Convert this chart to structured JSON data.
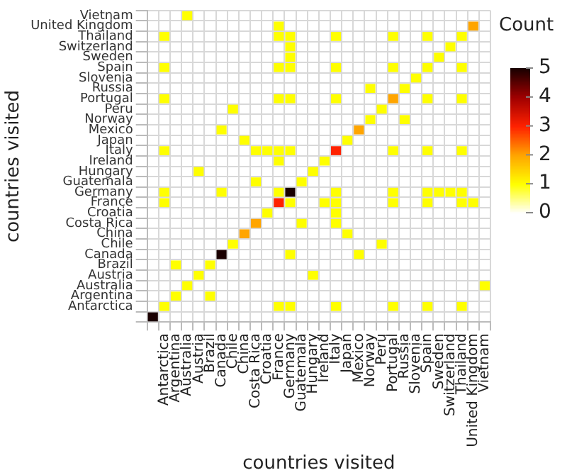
{
  "chart_data": {
    "type": "heatmap",
    "xlabel": "countries visited",
    "ylabel": "countries visited",
    "clabel": "Count",
    "categories": [
      null,
      "Antarctica",
      "Argentina",
      "Australia",
      "Austria",
      "Brazil",
      "Canada",
      "Chile",
      "China",
      "Costa Rica",
      "Croatia",
      "France",
      "Germany",
      "Guatemala",
      "Hungary",
      "Ireland",
      "Italy",
      "Japan",
      "Mexico",
      "Norway",
      "Peru",
      "Portugal",
      "Russia",
      "Slovenia",
      "Spain",
      "Sweden",
      "Switzerland",
      "Thailand",
      "United Kingdom",
      "Vietnam"
    ],
    "y_categories": [
      "Vietnam",
      "United Kingdom",
      "Thailand",
      "Switzerland",
      "Sweden",
      "Spain",
      "Slovenia",
      "Russia",
      "Portugal",
      "Peru",
      "Norway",
      "Mexico",
      "Japan",
      "Italy",
      "Ireland",
      "Hungary",
      "Guatemala",
      "Germany",
      "France",
      "Croatia",
      "Costa Rica",
      "China",
      "Chile",
      "Canada",
      "Brazil",
      "Austria",
      "Australia",
      "Argentina",
      "Antarctica",
      null
    ],
    "cells": [
      [
        null,
        null,
        null,
        1,
        null,
        null,
        null,
        null,
        null,
        null,
        null,
        null,
        null,
        null,
        null,
        null,
        null,
        null,
        null,
        null,
        null,
        null,
        null,
        null,
        null,
        null,
        null,
        null,
        null,
        null
      ],
      [
        null,
        null,
        null,
        null,
        null,
        null,
        null,
        null,
        null,
        null,
        null,
        1,
        null,
        null,
        null,
        null,
        null,
        null,
        null,
        null,
        null,
        null,
        null,
        null,
        null,
        null,
        null,
        null,
        2,
        null
      ],
      [
        null,
        1,
        null,
        null,
        null,
        null,
        null,
        null,
        null,
        null,
        null,
        1,
        1,
        null,
        null,
        null,
        1,
        null,
        null,
        null,
        null,
        1,
        null,
        null,
        1,
        null,
        null,
        1,
        null,
        null
      ],
      [
        null,
        null,
        null,
        null,
        null,
        null,
        null,
        null,
        null,
        null,
        null,
        null,
        1,
        null,
        null,
        null,
        null,
        null,
        null,
        null,
        null,
        null,
        null,
        null,
        null,
        null,
        1,
        null,
        null,
        null
      ],
      [
        null,
        null,
        null,
        null,
        null,
        null,
        null,
        null,
        null,
        null,
        null,
        null,
        1,
        null,
        null,
        null,
        null,
        null,
        null,
        null,
        null,
        null,
        null,
        null,
        null,
        1,
        null,
        null,
        null,
        null
      ],
      [
        null,
        1,
        null,
        null,
        null,
        null,
        null,
        null,
        null,
        null,
        null,
        1,
        1,
        null,
        null,
        null,
        1,
        null,
        null,
        null,
        null,
        1,
        null,
        null,
        1,
        null,
        null,
        1,
        null,
        null
      ],
      [
        null,
        null,
        null,
        null,
        null,
        null,
        null,
        null,
        null,
        null,
        null,
        null,
        null,
        null,
        null,
        null,
        null,
        null,
        null,
        null,
        null,
        null,
        null,
        1,
        null,
        null,
        null,
        null,
        null,
        null
      ],
      [
        null,
        null,
        null,
        null,
        null,
        null,
        null,
        null,
        null,
        null,
        null,
        null,
        null,
        null,
        null,
        null,
        null,
        null,
        null,
        1,
        null,
        null,
        1,
        null,
        null,
        null,
        null,
        null,
        null,
        null
      ],
      [
        null,
        1,
        null,
        null,
        null,
        null,
        null,
        null,
        null,
        null,
        null,
        1,
        1,
        null,
        null,
        null,
        1,
        null,
        null,
        null,
        null,
        2,
        null,
        null,
        1,
        null,
        null,
        1,
        null,
        null
      ],
      [
        null,
        null,
        null,
        null,
        null,
        null,
        null,
        1,
        null,
        null,
        null,
        null,
        null,
        null,
        null,
        null,
        null,
        null,
        null,
        null,
        1,
        null,
        null,
        null,
        null,
        null,
        null,
        null,
        null,
        null
      ],
      [
        null,
        null,
        null,
        null,
        null,
        null,
        null,
        null,
        null,
        null,
        null,
        null,
        null,
        null,
        null,
        null,
        null,
        null,
        null,
        1,
        null,
        null,
        1,
        null,
        null,
        null,
        null,
        null,
        null,
        null
      ],
      [
        null,
        null,
        null,
        null,
        null,
        null,
        1,
        null,
        null,
        null,
        null,
        null,
        null,
        null,
        null,
        null,
        null,
        null,
        2,
        null,
        null,
        null,
        null,
        null,
        null,
        null,
        null,
        null,
        null,
        null
      ],
      [
        null,
        null,
        null,
        null,
        null,
        null,
        null,
        null,
        1,
        null,
        null,
        null,
        null,
        null,
        null,
        null,
        null,
        1,
        null,
        null,
        null,
        null,
        null,
        null,
        null,
        null,
        null,
        null,
        null,
        null
      ],
      [
        null,
        1,
        null,
        null,
        null,
        null,
        null,
        null,
        null,
        1,
        1,
        1,
        1,
        null,
        null,
        null,
        3,
        null,
        null,
        null,
        null,
        1,
        null,
        null,
        1,
        null,
        null,
        1,
        null,
        null
      ],
      [
        null,
        null,
        null,
        null,
        null,
        null,
        null,
        null,
        null,
        null,
        null,
        1,
        null,
        null,
        null,
        1,
        null,
        null,
        null,
        null,
        null,
        null,
        null,
        null,
        null,
        null,
        null,
        null,
        null,
        null
      ],
      [
        null,
        null,
        null,
        null,
        1,
        null,
        null,
        null,
        null,
        null,
        null,
        null,
        null,
        null,
        1,
        null,
        null,
        null,
        null,
        null,
        null,
        null,
        null,
        null,
        null,
        null,
        null,
        null,
        null,
        null
      ],
      [
        null,
        null,
        null,
        null,
        null,
        null,
        null,
        null,
        null,
        1,
        null,
        null,
        null,
        1,
        null,
        null,
        null,
        null,
        null,
        null,
        null,
        null,
        null,
        null,
        null,
        null,
        null,
        null,
        null,
        null
      ],
      [
        null,
        1,
        null,
        null,
        null,
        null,
        1,
        null,
        null,
        null,
        null,
        1,
        5,
        null,
        null,
        null,
        1,
        null,
        null,
        null,
        null,
        1,
        null,
        null,
        1,
        1,
        1,
        1,
        null,
        null
      ],
      [
        null,
        1,
        null,
        null,
        null,
        null,
        null,
        null,
        null,
        null,
        null,
        3,
        1,
        null,
        null,
        1,
        1,
        null,
        null,
        null,
        null,
        1,
        null,
        null,
        1,
        null,
        null,
        1,
        1,
        null
      ],
      [
        null,
        null,
        null,
        null,
        null,
        null,
        null,
        null,
        null,
        null,
        1,
        null,
        null,
        null,
        null,
        null,
        1,
        null,
        null,
        null,
        null,
        null,
        null,
        null,
        null,
        null,
        null,
        null,
        null,
        null
      ],
      [
        null,
        null,
        null,
        null,
        null,
        null,
        null,
        null,
        null,
        2,
        null,
        null,
        null,
        1,
        null,
        null,
        1,
        null,
        null,
        null,
        null,
        null,
        null,
        null,
        null,
        null,
        null,
        null,
        null,
        null
      ],
      [
        null,
        null,
        null,
        null,
        null,
        null,
        null,
        null,
        2,
        null,
        null,
        null,
        null,
        null,
        null,
        null,
        null,
        1,
        null,
        null,
        null,
        null,
        null,
        null,
        null,
        null,
        null,
        null,
        null,
        null
      ],
      [
        null,
        null,
        null,
        null,
        null,
        null,
        null,
        1,
        null,
        null,
        null,
        null,
        null,
        null,
        null,
        null,
        null,
        null,
        null,
        null,
        1,
        null,
        null,
        null,
        null,
        null,
        null,
        null,
        null,
        null
      ],
      [
        null,
        null,
        null,
        null,
        null,
        null,
        5,
        null,
        null,
        null,
        null,
        null,
        1,
        null,
        null,
        null,
        null,
        null,
        1,
        null,
        null,
        null,
        null,
        null,
        null,
        null,
        null,
        null,
        null,
        null
      ],
      [
        null,
        null,
        1,
        null,
        null,
        1,
        null,
        null,
        null,
        null,
        null,
        null,
        null,
        null,
        null,
        null,
        null,
        null,
        null,
        null,
        null,
        null,
        null,
        null,
        null,
        null,
        null,
        null,
        null,
        null
      ],
      [
        null,
        null,
        null,
        null,
        1,
        null,
        null,
        null,
        null,
        null,
        null,
        null,
        null,
        null,
        1,
        null,
        null,
        null,
        null,
        null,
        null,
        null,
        null,
        null,
        null,
        null,
        null,
        null,
        null,
        null
      ],
      [
        null,
        null,
        null,
        1,
        null,
        null,
        null,
        null,
        null,
        null,
        null,
        null,
        null,
        null,
        null,
        null,
        null,
        null,
        null,
        null,
        null,
        null,
        null,
        null,
        null,
        null,
        null,
        null,
        null,
        1
      ],
      [
        null,
        null,
        1,
        null,
        null,
        1,
        null,
        null,
        null,
        null,
        null,
        null,
        null,
        null,
        null,
        null,
        null,
        null,
        null,
        null,
        null,
        null,
        null,
        null,
        null,
        null,
        null,
        null,
        null,
        null
      ],
      [
        null,
        1,
        null,
        null,
        null,
        null,
        null,
        null,
        null,
        null,
        null,
        1,
        1,
        null,
        null,
        null,
        1,
        null,
        null,
        null,
        null,
        1,
        null,
        null,
        1,
        null,
        null,
        1,
        null,
        null
      ],
      [
        5,
        null,
        null,
        null,
        null,
        null,
        null,
        null,
        null,
        null,
        null,
        null,
        null,
        null,
        null,
        null,
        null,
        null,
        null,
        null,
        null,
        null,
        null,
        null,
        null,
        null,
        null,
        null,
        null,
        null
      ]
    ],
    "clim": [
      0,
      5
    ],
    "cticks": [
      0,
      1,
      2,
      3,
      4,
      5
    ],
    "grid": true
  }
}
